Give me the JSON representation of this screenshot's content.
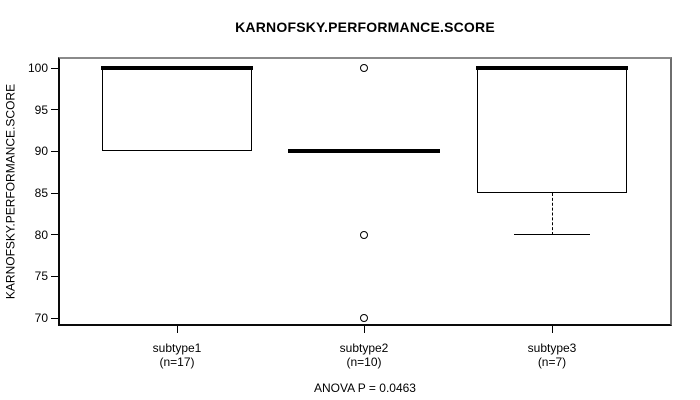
{
  "figure": {
    "title": "KARNOFSKY.PERFORMANCE.SCORE",
    "y_axis_label": "KARNOFSKY.PERFORMANCE.SCORE",
    "annotation": "ANOVA P = 0.0463"
  },
  "chart_data": {
    "type": "boxplot",
    "title": "KARNOFSKY.PERFORMANCE.SCORE",
    "xlabel": "",
    "ylabel": "KARNOFSKY.PERFORMANCE.SCORE",
    "ylim": [
      70,
      100
    ],
    "y_ticks": [
      100,
      95,
      90,
      85,
      80,
      75,
      70
    ],
    "grid": false,
    "legend": "none",
    "annotation": "ANOVA P = 0.0463",
    "box_color": "#000000",
    "box_fill": "#ffffff",
    "groups": [
      {
        "label": "subtype1",
        "sublabel": "(n=17)",
        "q1": 90,
        "median": 100,
        "q3": 100,
        "whisker_low": 90,
        "whisker_high": 100,
        "outliers": []
      },
      {
        "label": "subtype2",
        "sublabel": "(n=10)",
        "q1": 90,
        "median": 90,
        "q3": 90,
        "whisker_low": 90,
        "whisker_high": 90,
        "outliers": [
          100,
          80,
          70
        ]
      },
      {
        "label": "subtype3",
        "sublabel": "(n=7)",
        "q1": 85,
        "median": 100,
        "q3": 100,
        "whisker_low": 80,
        "whisker_high": 100,
        "outliers": []
      }
    ]
  }
}
